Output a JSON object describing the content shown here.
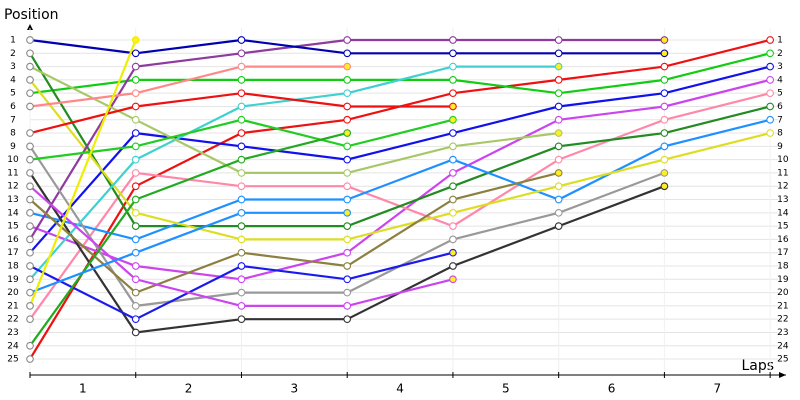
{
  "chart_data": {
    "type": "lap-chart",
    "y_title": "Position",
    "x_title": "Laps",
    "x": [
      0,
      1,
      2,
      3,
      4,
      5,
      6,
      7
    ],
    "xlim": [
      0,
      7.15
    ],
    "xticks": [
      {
        "value": 0.5,
        "label": "1"
      },
      {
        "value": 1.5,
        "label": "2"
      },
      {
        "value": 2.5,
        "label": "3"
      },
      {
        "value": 3.5,
        "label": "4"
      },
      {
        "value": 4.5,
        "label": "5"
      },
      {
        "value": 5.5,
        "label": "6"
      },
      {
        "value": 6.5,
        "label": "7"
      }
    ],
    "ylim": [
      0,
      26.2
    ],
    "y_reversed": true,
    "yticks": [
      1,
      2,
      3,
      4,
      5,
      6,
      7,
      8,
      9,
      10,
      11,
      12,
      13,
      14,
      15,
      16,
      17,
      18,
      19,
      20,
      21,
      22,
      23,
      24,
      25
    ],
    "grid": true,
    "series": [
      {
        "color": "#ee1111",
        "values": [
          25,
          12,
          8,
          7,
          5,
          4,
          3,
          1
        ]
      },
      {
        "color": "#11cc11",
        "values": [
          5,
          4,
          4,
          4,
          4,
          5,
          4,
          2
        ]
      },
      {
        "color": "#1111ee",
        "values": [
          17,
          8,
          9,
          10,
          8,
          6,
          5,
          3
        ]
      },
      {
        "color": "#cc44ee",
        "values": [
          15,
          18,
          19,
          17,
          11,
          7,
          6,
          4
        ]
      },
      {
        "color": "#ff88aa",
        "values": [
          22,
          11,
          12,
          12,
          15,
          10,
          7,
          5
        ]
      },
      {
        "color": "#228b22",
        "values": [
          2,
          15,
          15,
          15,
          12,
          9,
          8,
          6
        ]
      },
      {
        "color": "#1e90ff",
        "values": [
          14,
          16,
          13,
          13,
          10,
          13,
          9,
          7
        ]
      },
      {
        "color": "#dddd22",
        "values": [
          4,
          14,
          16,
          16,
          14,
          12,
          10,
          8
        ]
      },
      {
        "color": "#8e3a9e",
        "values": [
          16,
          3,
          2,
          1,
          1,
          1,
          1,
          null
        ]
      },
      {
        "color": "#0000b0",
        "values": [
          1,
          2,
          1,
          2,
          2,
          2,
          2,
          null
        ]
      },
      {
        "color": "#999999",
        "values": [
          9,
          21,
          20,
          20,
          16,
          14,
          11,
          null
        ]
      },
      {
        "color": "#333333",
        "values": [
          11,
          23,
          22,
          22,
          18,
          15,
          12,
          null
        ]
      },
      {
        "color": "#40d0d0",
        "values": [
          19,
          10,
          6,
          5,
          3,
          3,
          null,
          null
        ]
      },
      {
        "color": "#a8c868",
        "values": [
          3,
          7,
          11,
          11,
          9,
          8,
          null,
          null
        ]
      },
      {
        "color": "#8b8040",
        "values": [
          13,
          20,
          17,
          18,
          13,
          11,
          null,
          null
        ]
      },
      {
        "color": "#ee1111",
        "values": [
          8,
          6,
          5,
          6,
          6,
          null,
          null,
          null
        ]
      },
      {
        "color": "#22cc22",
        "values": [
          10,
          9,
          7,
          9,
          7,
          null,
          null,
          null
        ]
      },
      {
        "color": "#1a1aee",
        "values": [
          18,
          22,
          18,
          19,
          17,
          null,
          null,
          null
        ]
      },
      {
        "color": "#cc44ee",
        "values": [
          12,
          19,
          21,
          21,
          19,
          null,
          null,
          null
        ]
      },
      {
        "color": "#ff8888",
        "values": [
          6,
          5,
          3,
          3,
          null,
          null,
          null,
          null
        ]
      },
      {
        "color": "#22aa22",
        "values": [
          24,
          13,
          10,
          8,
          null,
          null,
          null,
          null
        ]
      },
      {
        "color": "#1e90ff",
        "values": [
          20,
          17,
          14,
          14,
          null,
          null,
          null,
          null
        ]
      },
      {
        "color": "#eeee00",
        "values": [
          21,
          1,
          null,
          null,
          null,
          null,
          null,
          null
        ]
      }
    ]
  }
}
